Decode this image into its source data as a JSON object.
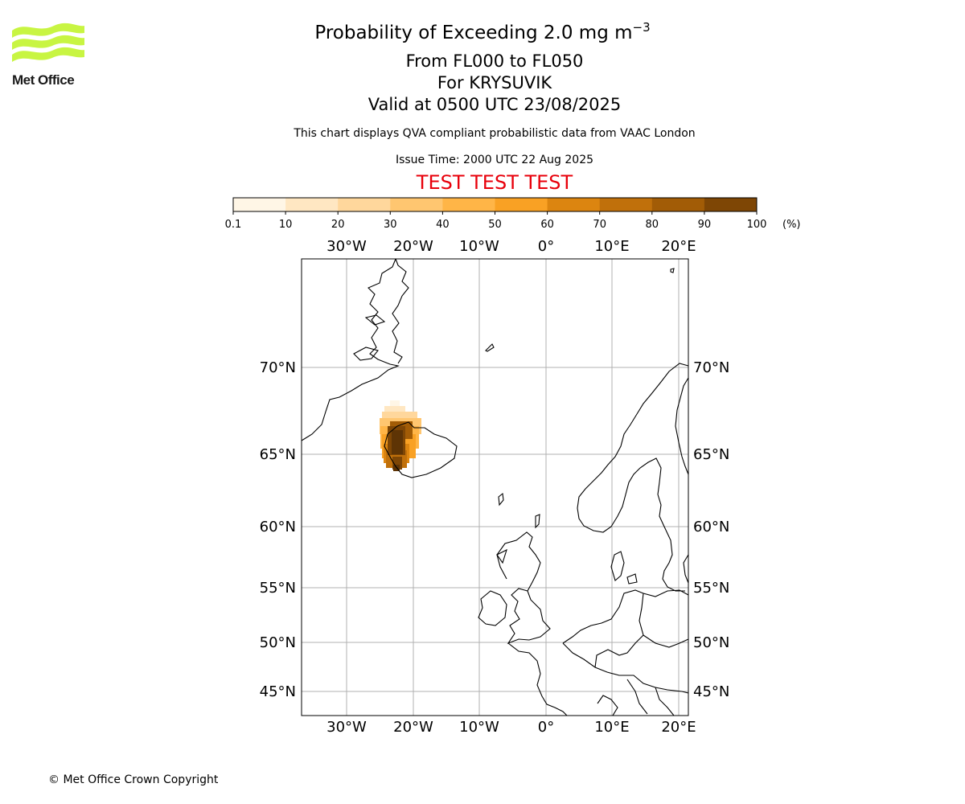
{
  "logo": {
    "name": "Met Office"
  },
  "header": {
    "title": "Probability of Exceeding 2.0 mg m",
    "title_exponent": "−3",
    "levels": "From FL000 to FL050",
    "location": "For KRYSUVIK",
    "valid": "Valid at 0500 UTC 23/08/2025",
    "description": "This chart displays QVA compliant probabilistic data from VAAC London",
    "issue_time": "Issue Time: 2000 UTC 22 Aug 2025",
    "test_banner": "TEST TEST TEST"
  },
  "colorbar": {
    "ticks": [
      "0.1",
      "10",
      "20",
      "30",
      "40",
      "50",
      "60",
      "70",
      "80",
      "90",
      "100"
    ],
    "unit": "(%)",
    "colors": [
      "#fff6e6",
      "#ffe7c2",
      "#ffd79c",
      "#ffc670",
      "#ffb547",
      "#f9a124",
      "#dc8510",
      "#c0700b",
      "#a25c06",
      "#7e4605",
      "#5e3405"
    ]
  },
  "map": {
    "lon_labels": [
      "30°W",
      "20°W",
      "10°W",
      "0°",
      "10°E",
      "20°E"
    ],
    "lat_labels": [
      "70°N",
      "65°N",
      "60°N",
      "55°N",
      "50°N",
      "45°N"
    ],
    "plume_origin": "KRYSUVIK"
  },
  "footer": {
    "copyright": "© Met Office Crown Copyright"
  }
}
